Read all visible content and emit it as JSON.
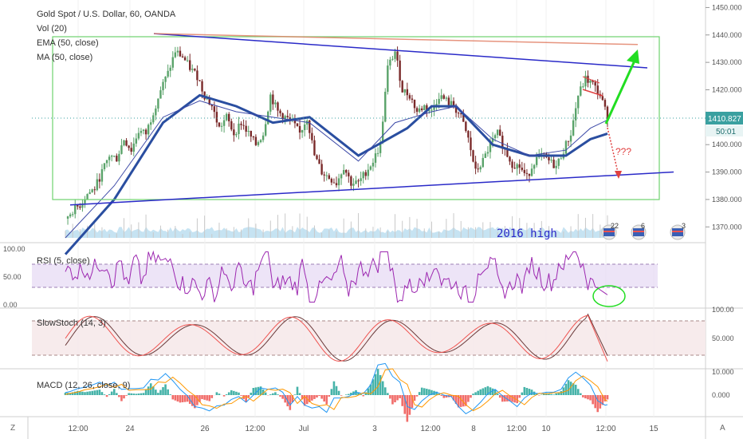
{
  "header": {
    "title": "Gold Spot / U.S. Dollar, 60, OANDA",
    "indicators": [
      "Vol (20)",
      "EMA (50, close)",
      "MA (50, close)"
    ]
  },
  "annotations": {
    "question": "???",
    "high_label": "2016 high"
  },
  "price_tag": {
    "value": "1410.827",
    "countdown": "50:01"
  },
  "events": [
    {
      "count": "22"
    },
    {
      "count": "6"
    },
    {
      "count": "3"
    }
  ],
  "colors": {
    "up": "#26a69a",
    "down": "#ef5350",
    "candle_up": "#5aa36a",
    "candle_down": "#7a2a2a",
    "ema": "#2a4ea0",
    "ma": "#3d4aa8",
    "box": "#6fd36f",
    "trend": "#2a2ac8",
    "rsi": "#9c27b0",
    "stoch_k": "#ef5350",
    "stoch_d": "#6b3a3a",
    "macd": "#2196f3",
    "signal": "#ff9800"
  },
  "chart_data": [
    {
      "type": "candlestick",
      "title": "Gold Spot / U.S. Dollar, 60, OANDA",
      "ylim": [
        1366,
        1451
      ],
      "y_ticks": [
        "1450.000",
        "1440.000",
        "1430.000",
        "1420.000",
        "1410.000",
        "1400.000",
        "1390.000",
        "1380.000",
        "1370.000"
      ],
      "x_ticks": [
        "12:00",
        "24",
        "26",
        "12:00",
        "Jul",
        "3",
        "12:00",
        "8",
        "12:00",
        "10",
        "12:00",
        "15"
      ],
      "ohlc_close_path": [
        [
          0,
          1373
        ],
        [
          3,
          1376
        ],
        [
          6,
          1378
        ],
        [
          9,
          1382
        ],
        [
          12,
          1384
        ],
        [
          15,
          1390
        ],
        [
          18,
          1396
        ],
        [
          21,
          1395
        ],
        [
          24,
          1402
        ],
        [
          27,
          1398
        ],
        [
          30,
          1405
        ],
        [
          33,
          1404
        ],
        [
          36,
          1412
        ],
        [
          39,
          1420
        ],
        [
          42,
          1426
        ],
        [
          45,
          1434
        ],
        [
          48,
          1432
        ],
        [
          51,
          1428
        ],
        [
          54,
          1425
        ],
        [
          57,
          1418
        ],
        [
          60,
          1414
        ],
        [
          63,
          1406
        ],
        [
          66,
          1410
        ],
        [
          69,
          1404
        ],
        [
          72,
          1408
        ],
        [
          75,
          1404
        ],
        [
          78,
          1400
        ],
        [
          81,
          1404
        ],
        [
          84,
          1418
        ],
        [
          87,
          1412
        ],
        [
          90,
          1410
        ],
        [
          93,
          1408
        ],
        [
          96,
          1404
        ],
        [
          99,
          1410
        ],
        [
          102,
          1396
        ],
        [
          105,
          1390
        ],
        [
          108,
          1388
        ],
        [
          111,
          1386
        ],
        [
          114,
          1392
        ],
        [
          117,
          1386
        ],
        [
          120,
          1386
        ],
        [
          123,
          1390
        ],
        [
          126,
          1394
        ],
        [
          129,
          1400
        ],
        [
          132,
          1428
        ],
        [
          135,
          1434
        ],
        [
          138,
          1420
        ],
        [
          141,
          1418
        ],
        [
          144,
          1412
        ],
        [
          147,
          1414
        ],
        [
          150,
          1412
        ],
        [
          153,
          1418
        ],
        [
          156,
          1416
        ],
        [
          159,
          1414
        ],
        [
          162,
          1410
        ],
        [
          165,
          1402
        ],
        [
          168,
          1390
        ],
        [
          171,
          1394
        ],
        [
          174,
          1400
        ],
        [
          177,
          1404
        ],
        [
          180,
          1398
        ],
        [
          183,
          1393
        ],
        [
          186,
          1392
        ],
        [
          189,
          1388
        ],
        [
          192,
          1394
        ],
        [
          195,
          1396
        ],
        [
          198,
          1394
        ],
        [
          201,
          1392
        ],
        [
          204,
          1398
        ],
        [
          207,
          1404
        ],
        [
          210,
          1418
        ],
        [
          213,
          1424
        ],
        [
          216,
          1422
        ],
        [
          219,
          1418
        ],
        [
          222,
          1410
        ]
      ],
      "ema_path": [
        [
          0,
          1360
        ],
        [
          20,
          1380
        ],
        [
          40,
          1408
        ],
        [
          55,
          1418
        ],
        [
          70,
          1414
        ],
        [
          85,
          1408
        ],
        [
          100,
          1410
        ],
        [
          120,
          1396
        ],
        [
          140,
          1406
        ],
        [
          150,
          1414
        ],
        [
          160,
          1414
        ],
        [
          175,
          1400
        ],
        [
          190,
          1396
        ],
        [
          205,
          1396
        ],
        [
          215,
          1402
        ],
        [
          222,
          1404
        ]
      ],
      "ma_path": [
        [
          0,
          1366
        ],
        [
          20,
          1385
        ],
        [
          40,
          1410
        ],
        [
          55,
          1416
        ],
        [
          70,
          1412
        ],
        [
          85,
          1410
        ],
        [
          100,
          1408
        ],
        [
          120,
          1394
        ],
        [
          135,
          1408
        ],
        [
          150,
          1412
        ],
        [
          160,
          1414
        ],
        [
          175,
          1402
        ],
        [
          190,
          1396
        ],
        [
          205,
          1398
        ],
        [
          215,
          1406
        ],
        [
          222,
          1409
        ]
      ],
      "channel": {
        "top": [
          1439.5,
          1389.5
        ]
      },
      "trend_upper": {
        "from": [
          0,
          1440.5
        ],
        "to": [
          230,
          1428
        ]
      },
      "trend_lower": {
        "from": [
          0,
          1378
        ],
        "to": [
          230,
          1390
        ]
      },
      "resistance": {
        "from": [
          0,
          1440.5
        ],
        "to": [
          230,
          1436.5
        ]
      }
    },
    {
      "type": "line",
      "title": "RSI (5, close)",
      "ylim": [
        0,
        100
      ],
      "y_ticks": [
        "100.00",
        "50.00",
        "0.00"
      ],
      "bands": [
        70,
        30
      ]
    },
    {
      "type": "line",
      "title": "SlowStoch (14, 3)",
      "ylim": [
        0,
        100
      ],
      "y_ticks": [
        "100.00",
        "50.000"
      ],
      "bands": [
        80,
        20
      ]
    },
    {
      "type": "bar",
      "title": "MACD (12, 26, close, 9)",
      "y_ticks": [
        "10.000",
        "0.000"
      ]
    }
  ]
}
